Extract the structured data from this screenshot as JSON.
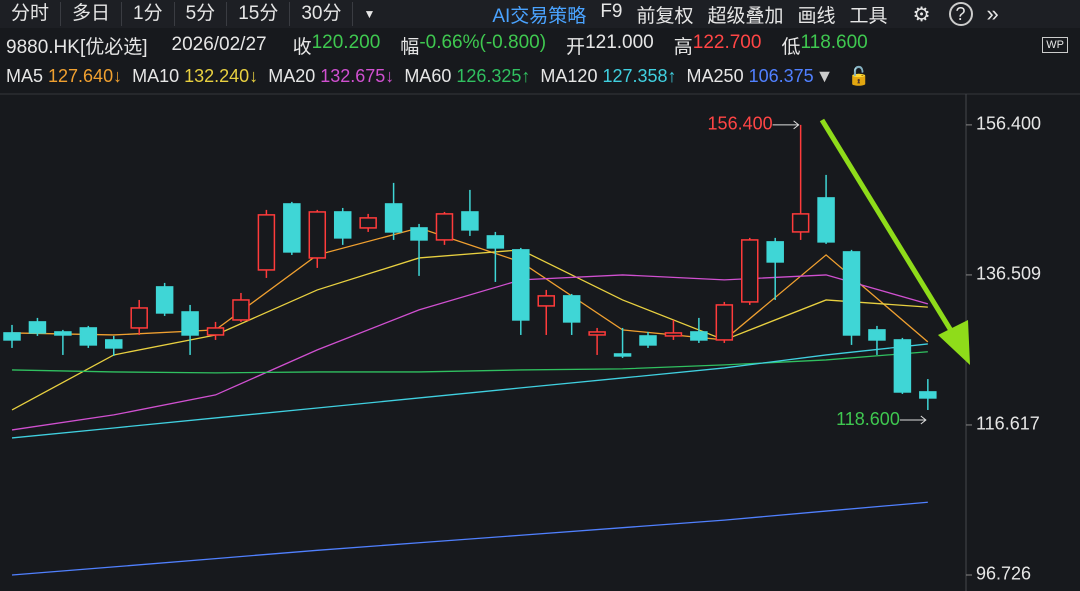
{
  "toolbar": {
    "tabs": [
      "分时",
      "多日",
      "1分",
      "5分",
      "15分",
      "30分"
    ],
    "tools": [
      "AI交易策略",
      "F9",
      "前复权",
      "超级叠加",
      "画线",
      "工具"
    ]
  },
  "quote": {
    "symbol": "9880.HK[优必选]",
    "date": "2026/02/27",
    "fields": [
      {
        "label": "收",
        "value": "120.200",
        "color": "#3fc850"
      },
      {
        "label": "幅",
        "value": "-0.66%(-0.800)",
        "color": "#3fc850"
      },
      {
        "label": "开",
        "value": "121.000",
        "color": "#e6e6e6"
      },
      {
        "label": "高",
        "value": "122.700",
        "color": "#ff4545"
      },
      {
        "label": "低",
        "value": "118.600",
        "color": "#3fc850"
      }
    ]
  },
  "chart_data": {
    "type": "candlestick",
    "ylim": [
      95.4,
      159.7
    ],
    "yticks": [
      {
        "value": 156.4,
        "label": "156.400"
      },
      136.509,
      116.617,
      96.726
    ],
    "up_color": "#ff3b3b",
    "down_color": "#3fd6d6",
    "open": [
      128.82,
      130.28,
      128.95,
      129.48,
      127.89,
      129.48,
      134.92,
      131.6,
      128.55,
      130.54,
      137.17,
      145.92,
      138.76,
      144.86,
      142.74,
      145.92,
      142.74,
      141.15,
      144.86,
      141.68,
      139.83,
      132.4,
      133.73,
      128.55,
      126.03,
      128.42,
      128.42,
      128.95,
      127.89,
      132.93,
      140.89,
      142.21,
      146.72,
      139.56,
      129.22,
      127.89,
      121.0
    ],
    "high": [
      129.88,
      130.81,
      129.22,
      129.75,
      128.42,
      133.19,
      135.45,
      132.53,
      130.28,
      134.12,
      145.13,
      146.19,
      145.13,
      145.39,
      144.6,
      148.71,
      143.27,
      144.86,
      147.78,
      142.21,
      140.09,
      134.52,
      133.99,
      129.48,
      129.48,
      128.95,
      130.54,
      130.81,
      132.93,
      141.42,
      141.42,
      156.4,
      149.77,
      139.83,
      129.75,
      128.16,
      122.7
    ],
    "low": [
      126.83,
      128.42,
      125.9,
      126.83,
      125.77,
      128.55,
      131.07,
      125.9,
      127.89,
      130.28,
      136.11,
      139.16,
      137.44,
      140.49,
      142.21,
      141.15,
      136.38,
      140.49,
      141.68,
      135.58,
      128.55,
      128.55,
      128.55,
      125.9,
      125.5,
      126.83,
      127.89,
      127.49,
      127.49,
      132.53,
      133.19,
      141.15,
      140.62,
      127.23,
      125.9,
      120.73,
      118.6
    ],
    "close": [
      127.89,
      128.82,
      128.55,
      127.23,
      126.83,
      132.13,
      131.47,
      128.55,
      129.48,
      133.19,
      144.47,
      139.56,
      144.86,
      141.42,
      144.07,
      142.21,
      141.15,
      144.6,
      142.48,
      140.09,
      130.54,
      133.73,
      130.28,
      128.95,
      125.77,
      127.23,
      128.82,
      127.89,
      132.53,
      141.15,
      138.23,
      144.6,
      140.89,
      128.55,
      127.89,
      120.99,
      120.2
    ],
    "series": [
      {
        "name": "MA5",
        "legend_value": "127.640↓",
        "color": "#f0a030",
        "x": [
          0,
          4,
          8,
          12,
          16,
          20,
          24,
          28,
          32,
          36
        ],
        "values": [
          128.82,
          128.55,
          129.22,
          139.16,
          142.74,
          138.23,
          129.22,
          127.89,
          139.16,
          127.64
        ]
      },
      {
        "name": "MA10",
        "legend_value": "132.240↓",
        "color": "#e8d040",
        "x": [
          0,
          4,
          8,
          12,
          16,
          20,
          24,
          28,
          32,
          36
        ],
        "values": [
          118.61,
          125.9,
          128.55,
          134.52,
          138.76,
          139.83,
          133.19,
          127.89,
          133.19,
          132.24
        ]
      },
      {
        "name": "MA20",
        "legend_value": "132.675↓",
        "color": "#d050d0",
        "x": [
          0,
          4,
          8,
          12,
          16,
          20,
          24,
          28,
          32,
          36
        ],
        "values": [
          115.96,
          117.95,
          120.6,
          126.57,
          131.87,
          135.85,
          136.51,
          135.85,
          136.51,
          132.675
        ]
      },
      {
        "name": "MA60",
        "legend_value": "126.325↑",
        "color": "#30c060",
        "x": [
          0,
          4,
          8,
          12,
          16,
          20,
          24,
          28,
          32,
          36
        ],
        "values": [
          123.91,
          123.65,
          123.52,
          123.65,
          123.65,
          123.91,
          124.05,
          124.58,
          125.24,
          126.325
        ]
      },
      {
        "name": "MA120",
        "legend_value": "127.358↑",
        "color": "#40d0e0",
        "x": [
          0,
          4,
          8,
          12,
          16,
          20,
          24,
          28,
          32,
          36
        ],
        "values": [
          114.9,
          116.22,
          117.55,
          118.87,
          120.2,
          121.53,
          122.85,
          124.18,
          125.9,
          127.358
        ]
      },
      {
        "name": "MA250",
        "legend_value": "106.375",
        "color": "#5080ff",
        "x": [
          0,
          4,
          8,
          12,
          16,
          20,
          24,
          28,
          32,
          36
        ],
        "values": [
          96.73,
          97.8,
          98.9,
          100.0,
          101.0,
          102.0,
          103.0,
          104.0,
          105.2,
          106.375
        ]
      }
    ],
    "annotations": [
      {
        "text": "156.400",
        "value": 156.4,
        "index": 31,
        "color": "#ff4545"
      },
      {
        "text": "118.600",
        "value": 118.6,
        "index": 36,
        "color": "#3fc850"
      }
    ]
  }
}
